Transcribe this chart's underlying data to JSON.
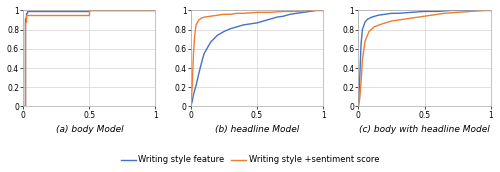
{
  "fig_width": 5.0,
  "fig_height": 1.72,
  "dpi": 100,
  "background_color": "#ffffff",
  "blue_color": "#4472C4",
  "orange_color": "#ED7D31",
  "grid_color": "#d3d3d3",
  "tick_fontsize": 5.5,
  "label_fontsize": 6.5,
  "legend_fontsize": 6.0,
  "subplot_titles": [
    "(a) body Model",
    "(b) headline Model",
    "(c) body with headline Model"
  ],
  "legend_labels": [
    "Writing style feature",
    "Writing style +sentiment score"
  ],
  "plots": [
    {
      "blue_x": [
        0,
        0.01,
        0.01,
        0.02,
        0.02,
        0.03,
        0.03,
        0.5,
        0.5,
        1.0
      ],
      "blue_y": [
        0,
        0.0,
        0.92,
        0.92,
        0.97,
        0.97,
        0.99,
        0.99,
        1.0,
        1.0
      ],
      "orange_x": [
        0,
        0.01,
        0.01,
        0.02,
        0.02,
        0.5,
        0.5,
        1.0
      ],
      "orange_y": [
        0,
        0.0,
        0.88,
        0.88,
        0.95,
        0.95,
        1.0,
        1.0
      ]
    },
    {
      "blue_x": [
        0,
        0.01,
        0.02,
        0.04,
        0.06,
        0.08,
        0.1,
        0.15,
        0.2,
        0.25,
        0.3,
        0.35,
        0.4,
        0.45,
        0.5,
        0.55,
        0.6,
        0.65,
        0.7,
        0.75,
        0.8,
        0.85,
        0.9,
        0.95,
        1.0
      ],
      "blue_y": [
        0,
        0.05,
        0.12,
        0.22,
        0.34,
        0.45,
        0.55,
        0.67,
        0.74,
        0.78,
        0.81,
        0.83,
        0.85,
        0.86,
        0.87,
        0.89,
        0.91,
        0.93,
        0.94,
        0.96,
        0.97,
        0.98,
        0.99,
        1.0,
        1.0
      ],
      "orange_x": [
        0,
        0.01,
        0.02,
        0.03,
        0.04,
        0.06,
        0.08,
        0.1,
        0.15,
        0.2,
        0.25,
        0.3,
        0.35,
        0.4,
        0.5,
        0.6,
        0.7,
        0.8,
        0.9,
        1.0
      ],
      "orange_y": [
        0,
        0.2,
        0.55,
        0.75,
        0.85,
        0.9,
        0.92,
        0.93,
        0.94,
        0.95,
        0.96,
        0.96,
        0.97,
        0.97,
        0.98,
        0.98,
        0.99,
        0.99,
        1.0,
        1.0
      ]
    },
    {
      "blue_x": [
        0,
        0.01,
        0.02,
        0.03,
        0.05,
        0.07,
        0.1,
        0.15,
        0.2,
        0.25,
        0.3,
        0.4,
        0.5,
        0.6,
        0.7,
        0.8,
        0.9,
        1.0
      ],
      "blue_y": [
        0,
        0.3,
        0.65,
        0.8,
        0.88,
        0.91,
        0.93,
        0.95,
        0.96,
        0.97,
        0.97,
        0.98,
        0.99,
        0.99,
        1.0,
        1.0,
        1.0,
        1.0
      ],
      "orange_x": [
        0,
        0.01,
        0.02,
        0.03,
        0.05,
        0.08,
        0.12,
        0.18,
        0.25,
        0.35,
        0.45,
        0.55,
        0.65,
        0.75,
        0.85,
        0.95,
        1.0
      ],
      "orange_y": [
        0,
        0.08,
        0.25,
        0.48,
        0.68,
        0.78,
        0.83,
        0.86,
        0.89,
        0.91,
        0.93,
        0.95,
        0.97,
        0.98,
        0.99,
        1.0,
        1.0
      ]
    }
  ],
  "xticks": [
    0,
    0.5,
    1
  ],
  "yticks": [
    0,
    0.2,
    0.4,
    0.6,
    0.8,
    1
  ],
  "ytick_labels_1": [
    "0",
    "0.2",
    "0.4",
    "0.6",
    "0.8",
    "1"
  ],
  "xtick_labels": [
    "0",
    "0.5",
    "1"
  ]
}
